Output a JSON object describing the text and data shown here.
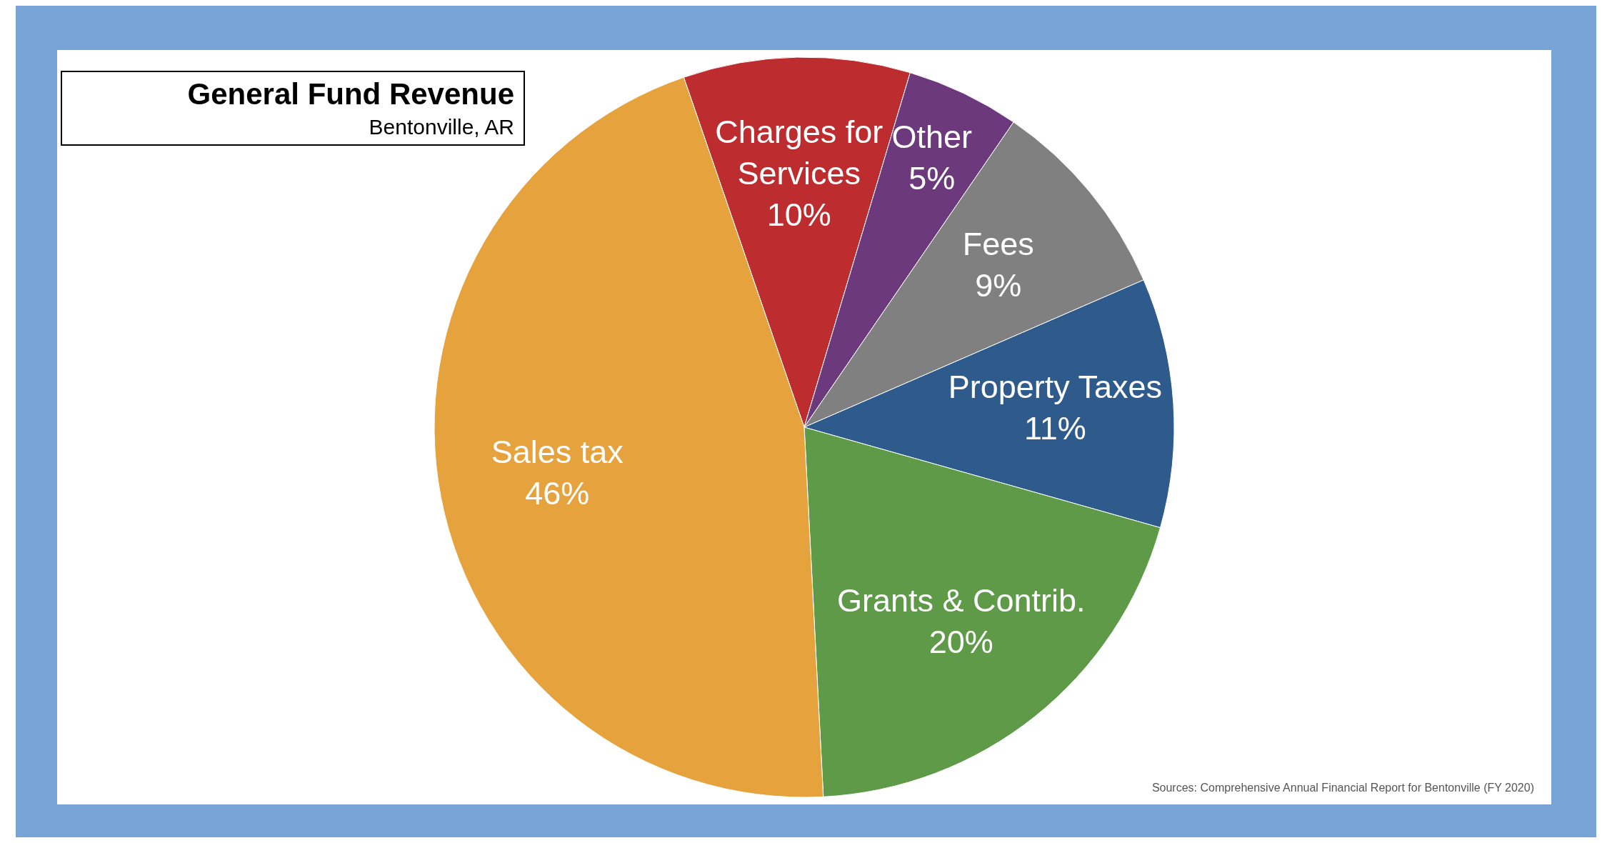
{
  "chart_data": {
    "type": "pie",
    "title": "General Fund Revenue",
    "subtitle": "Bentonville, AR",
    "categories": [
      "Charges for Services",
      "Other",
      "Fees",
      "Property Taxes",
      "Grants & Contrib.",
      "Sales tax"
    ],
    "values": [
      10,
      5,
      9,
      11,
      20,
      46
    ],
    "value_labels": [
      "10%",
      "5%",
      "9%",
      "11%",
      "20%",
      "46%"
    ],
    "colors": [
      "#bd2c2f",
      "#6c3a7c",
      "#808080",
      "#2e5a8c",
      "#5e9a48",
      "#e6a23c"
    ],
    "annotations": [
      "Sources:  Comprehensive Annual Financial Report for Bentonville (FY 2020)"
    ]
  }
}
